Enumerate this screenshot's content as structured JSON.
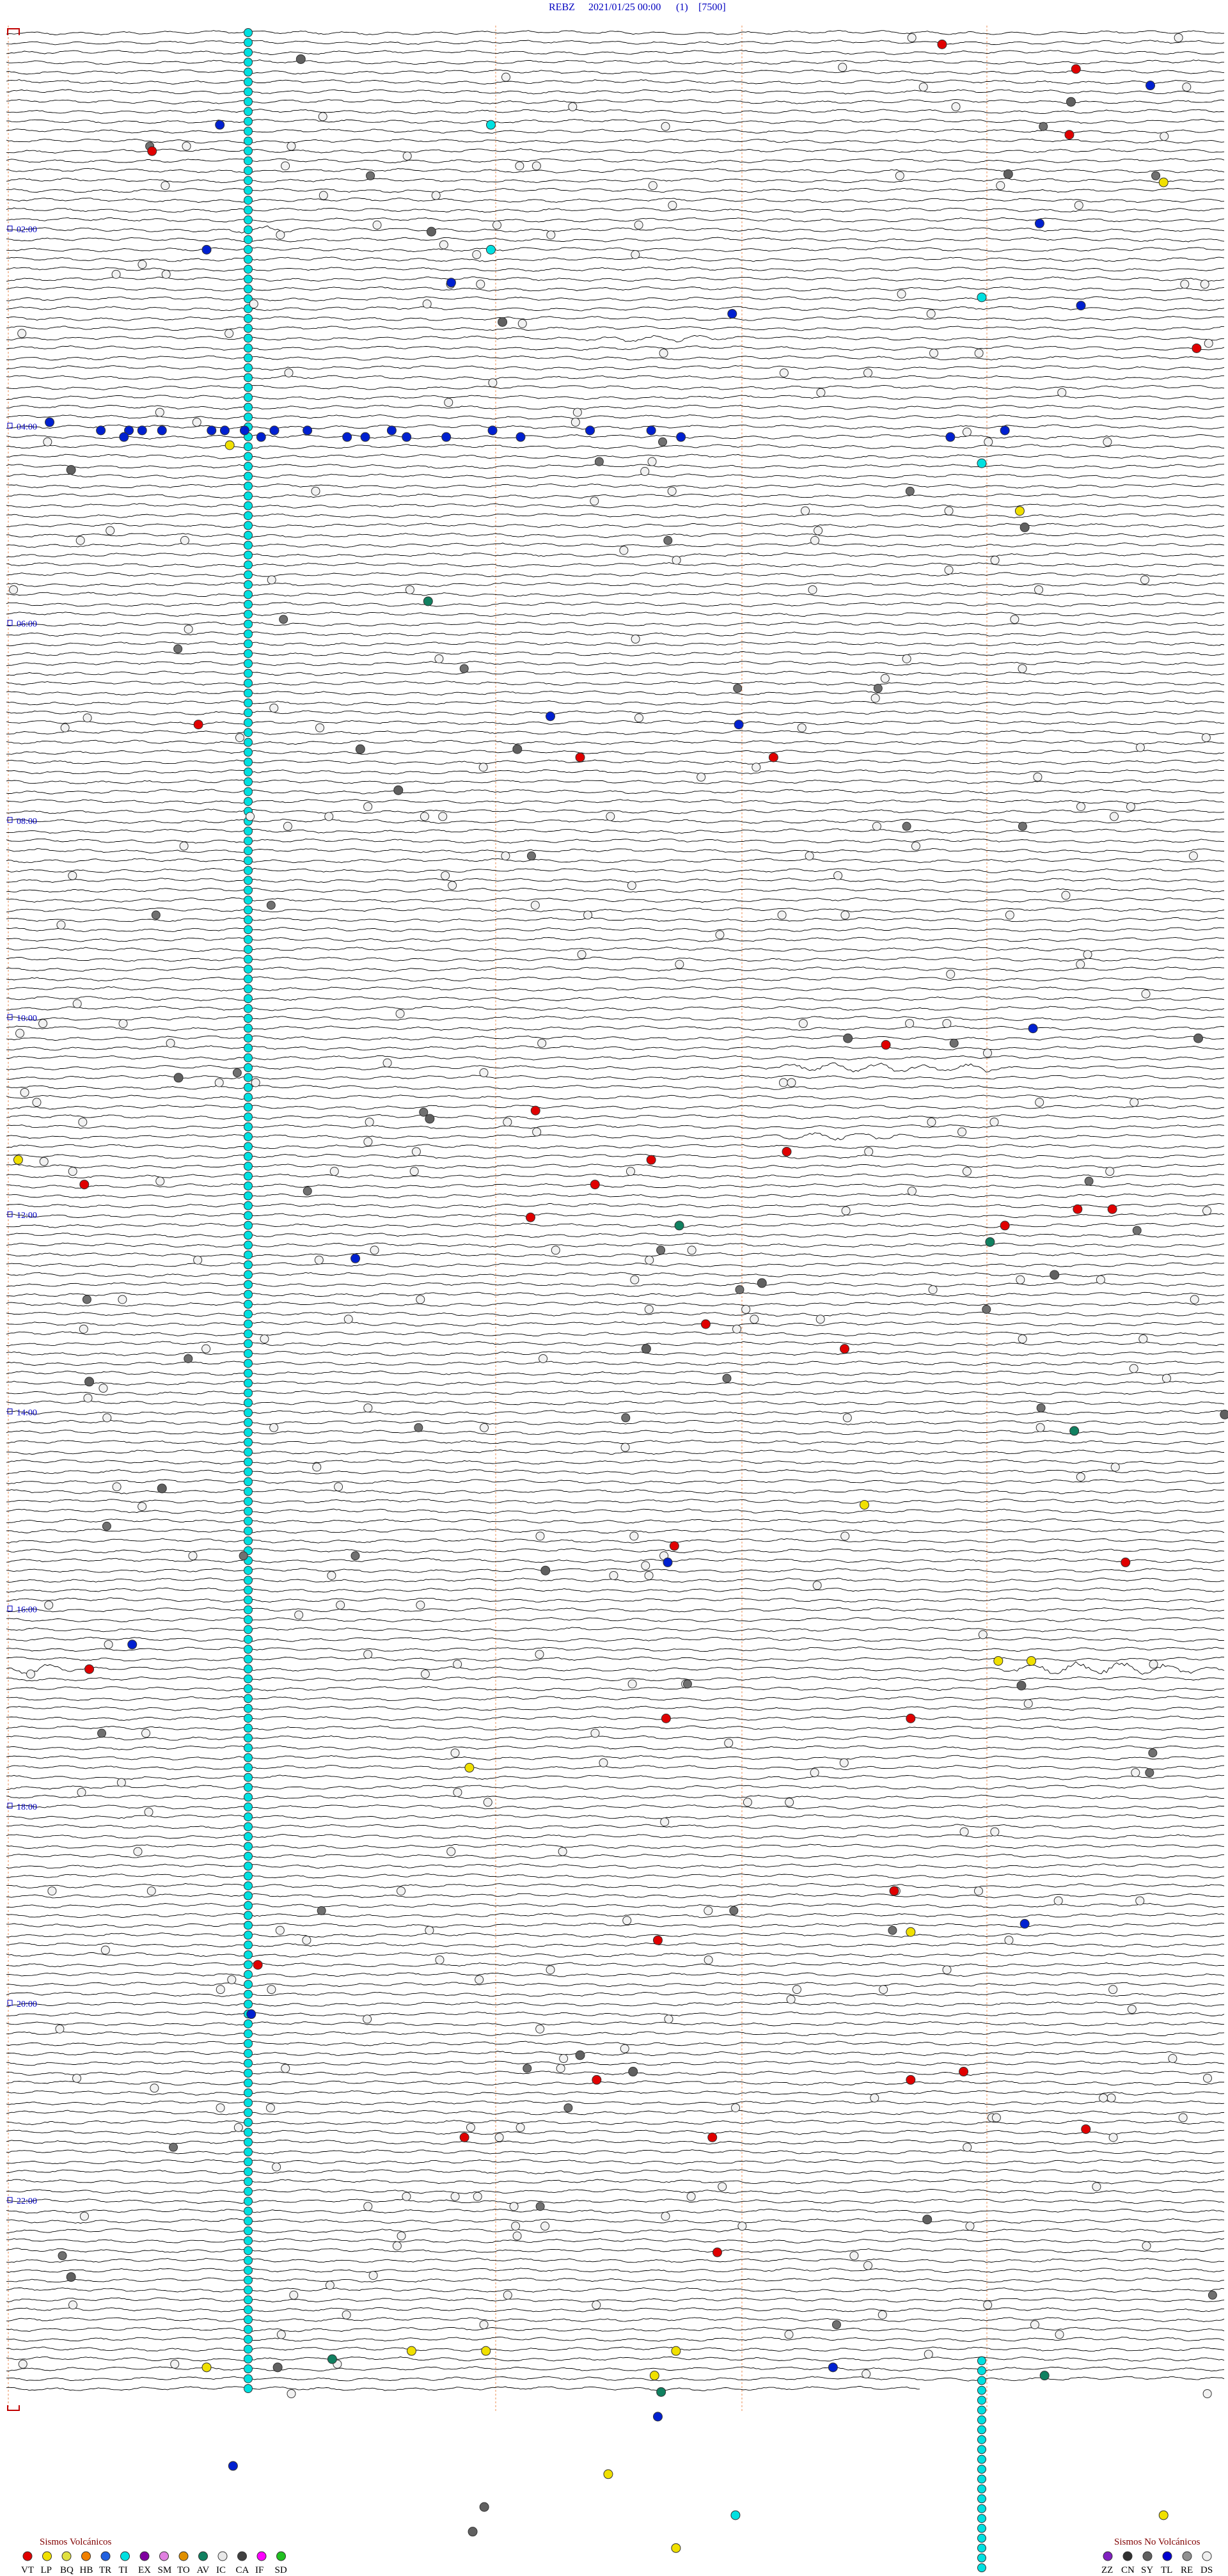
{
  "header": {
    "station": "REBZ",
    "date": "2021/01/25 00:00",
    "channel": "(1)",
    "scale": "[7500]"
  },
  "time_labels": [
    "02:00",
    "04:00",
    "06:00",
    "08:00",
    "10:00",
    "12:00",
    "14:00",
    "16:00",
    "18:00",
    "20:00",
    "22:00"
  ],
  "legend": {
    "volcanic": {
      "title": "Sismos Volcánicos",
      "items": [
        {
          "label": "VT",
          "color": "#e00000"
        },
        {
          "label": "LP",
          "color": "#f0e000"
        },
        {
          "label": "BQ",
          "color": "#e0e040"
        },
        {
          "label": "HB",
          "color": "#f08000"
        },
        {
          "label": "TR",
          "color": "#2060e0"
        },
        {
          "label": "TI",
          "color": "#00e0e0"
        },
        {
          "label": "EX",
          "color": "#8000a0"
        },
        {
          "label": "SM",
          "color": "#e080e0"
        },
        {
          "label": "TO",
          "color": "#e09000"
        },
        {
          "label": "AV",
          "color": "#108060"
        },
        {
          "label": "IC",
          "color": "#e8e8e8"
        },
        {
          "label": "CA",
          "color": "#404040"
        },
        {
          "label": "IF",
          "color": "#ff00ff"
        },
        {
          "label": "SD",
          "color": "#20c020"
        }
      ]
    },
    "non_volcanic": {
      "title": "Sismos No Volcánicos",
      "items": [
        {
          "label": "ZZ",
          "color": "#8020c0"
        },
        {
          "label": "CN",
          "color": "#303030"
        },
        {
          "label": "SY",
          "color": "#606060"
        },
        {
          "label": "TL",
          "color": "#0000d0"
        },
        {
          "label": "RE",
          "color": "#909090"
        },
        {
          "label": "DS",
          "color": "#f0f0f0"
        }
      ]
    }
  }
}
